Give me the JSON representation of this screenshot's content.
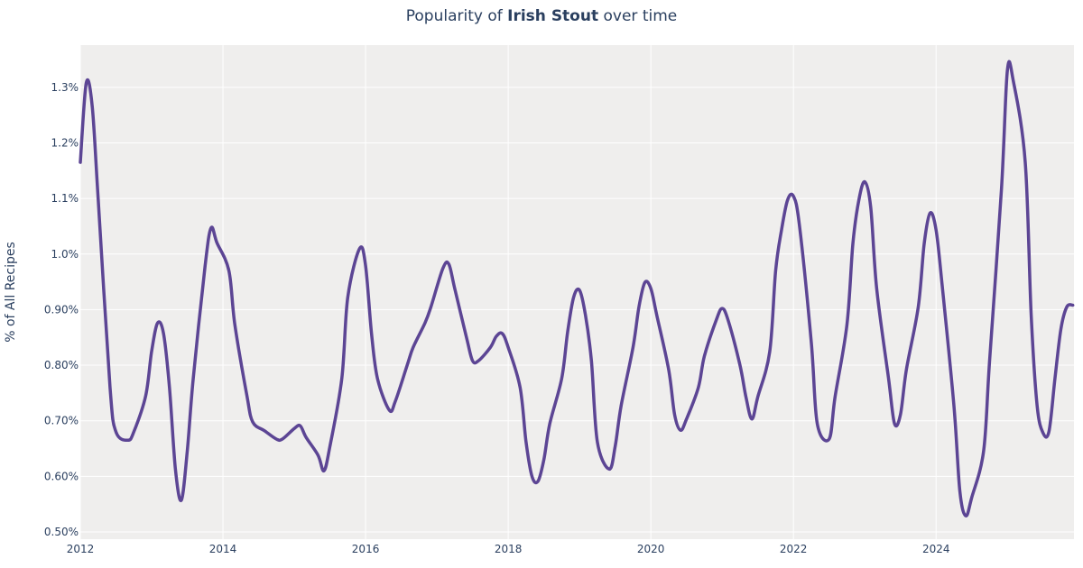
{
  "title": {
    "prefix": "Popularity of ",
    "bold": "Irish Stout",
    "suffix": " over time"
  },
  "chart_data": {
    "type": "line",
    "title": "Popularity of Irish Stout over time",
    "xlabel": "",
    "ylabel": "% of All Recipes",
    "xlim": [
      "2012-01",
      "2025-12"
    ],
    "ylim": [
      0.487,
      1.376
    ],
    "grid": true,
    "legend": "none",
    "colors": {
      "line": "#5c4594",
      "plot_bg": "#efeeed",
      "grid": "#ffffff",
      "text": "#2a3f5f"
    },
    "x_ticks": [
      "2012",
      "2014",
      "2016",
      "2018",
      "2020",
      "2022",
      "2024"
    ],
    "y_ticks": [
      {
        "value": 1.3,
        "label": "1.3%"
      },
      {
        "value": 1.2,
        "label": "1.2%"
      },
      {
        "value": 1.1,
        "label": "1.1%"
      },
      {
        "value": 1.0,
        "label": "1.0%"
      },
      {
        "value": 0.9,
        "label": "0.90%"
      },
      {
        "value": 0.8,
        "label": "0.80%"
      },
      {
        "value": 0.7,
        "label": "0.70%"
      },
      {
        "value": 0.6,
        "label": "0.60%"
      },
      {
        "value": 0.5,
        "label": "0.50%"
      }
    ],
    "series": [
      {
        "x": [
          "2012-01",
          "2012-02",
          "2012-03",
          "2012-04",
          "2012-06",
          "2012-07",
          "2012-09",
          "2012-10",
          "2012-12",
          "2013-01",
          "2013-02",
          "2013-03",
          "2013-04",
          "2013-05",
          "2013-06",
          "2013-07",
          "2013-08",
          "2013-10",
          "2013-11",
          "2013-12",
          "2014-02",
          "2014-03",
          "2014-05",
          "2014-06",
          "2014-08",
          "2014-10",
          "2014-11",
          "2015-01",
          "2015-02",
          "2015-03",
          "2015-05",
          "2015-06",
          "2015-07",
          "2015-09",
          "2015-10",
          "2015-12",
          "2016-01",
          "2016-02",
          "2016-03",
          "2016-05",
          "2016-06",
          "2016-08",
          "2016-09",
          "2016-11",
          "2016-12",
          "2017-02",
          "2017-03",
          "2017-04",
          "2017-06",
          "2017-07",
          "2017-08",
          "2017-10",
          "2017-11",
          "2017-12",
          "2018-01",
          "2018-03",
          "2018-04",
          "2018-05",
          "2018-06",
          "2018-07",
          "2018-08",
          "2018-10",
          "2018-11",
          "2018-12",
          "2019-01",
          "2019-02",
          "2019-03",
          "2019-04",
          "2019-06",
          "2019-07",
          "2019-08",
          "2019-10",
          "2019-11",
          "2019-12",
          "2020-01",
          "2020-02",
          "2020-04",
          "2020-05",
          "2020-06",
          "2020-07",
          "2020-09",
          "2020-10",
          "2020-12",
          "2021-01",
          "2021-02",
          "2021-04",
          "2021-05",
          "2021-06",
          "2021-07",
          "2021-09",
          "2021-10",
          "2021-11",
          "2021-12",
          "2022-01",
          "2022-02",
          "2022-04",
          "2022-05",
          "2022-07",
          "2022-08",
          "2022-10",
          "2022-11",
          "2022-12",
          "2023-01",
          "2023-02",
          "2023-03",
          "2023-05",
          "2023-06",
          "2023-07",
          "2023-08",
          "2023-10",
          "2023-11",
          "2023-12",
          "2024-01",
          "2024-02",
          "2024-04",
          "2024-05",
          "2024-06",
          "2024-07",
          "2024-09",
          "2024-10",
          "2024-12",
          "2025-01",
          "2025-02",
          "2025-04",
          "2025-05",
          "2025-06",
          "2025-07",
          "2025-08",
          "2025-09",
          "2025-10",
          "2025-11",
          "2025-12"
        ],
        "y": [
          1.165,
          1.308,
          1.266,
          1.1,
          0.76,
          0.68,
          0.665,
          0.68,
          0.745,
          0.825,
          0.876,
          0.857,
          0.76,
          0.613,
          0.557,
          0.646,
          0.776,
          0.979,
          1.047,
          1.02,
          0.97,
          0.873,
          0.747,
          0.698,
          0.682,
          0.667,
          0.667,
          0.686,
          0.691,
          0.67,
          0.638,
          0.61,
          0.654,
          0.776,
          0.922,
          1.01,
          0.979,
          0.857,
          0.776,
          0.719,
          0.735,
          0.8,
          0.832,
          0.876,
          0.905,
          0.974,
          0.982,
          0.938,
          0.849,
          0.808,
          0.808,
          0.832,
          0.852,
          0.857,
          0.832,
          0.76,
          0.662,
          0.6,
          0.591,
          0.63,
          0.695,
          0.776,
          0.86,
          0.922,
          0.935,
          0.89,
          0.808,
          0.662,
          0.613,
          0.654,
          0.727,
          0.832,
          0.905,
          0.949,
          0.938,
          0.89,
          0.792,
          0.711,
          0.683,
          0.703,
          0.76,
          0.816,
          0.881,
          0.902,
          0.881,
          0.8,
          0.743,
          0.703,
          0.743,
          0.824,
          0.97,
          1.044,
          1.097,
          1.104,
          1.052,
          0.841,
          0.695,
          0.667,
          0.743,
          0.873,
          1.019,
          1.097,
          1.13,
          1.084,
          0.938,
          0.776,
          0.695,
          0.711,
          0.792,
          0.905,
          1.019,
          1.074,
          1.043,
          0.946,
          0.727,
          0.573,
          0.529,
          0.562,
          0.646,
          0.808,
          1.117,
          1.331,
          1.311,
          1.165,
          0.89,
          0.727,
          0.678,
          0.681,
          0.776,
          0.865,
          0.905,
          0.908
        ]
      }
    ]
  }
}
